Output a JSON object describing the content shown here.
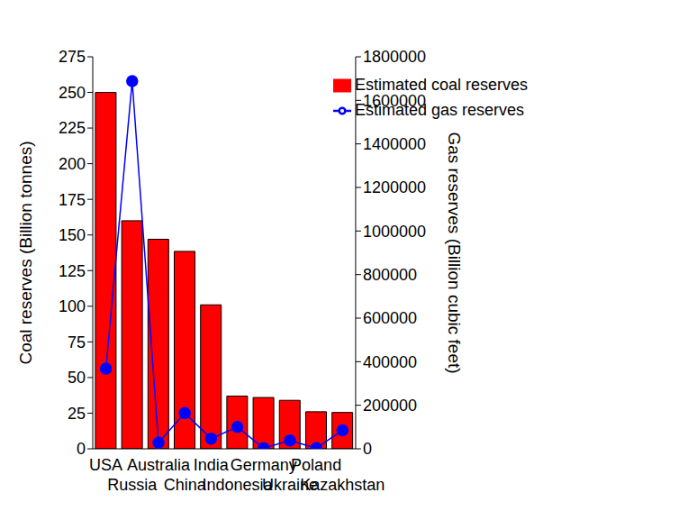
{
  "chart_data": {
    "type": "bar",
    "categories": [
      "USA",
      "Russia",
      "Australia",
      "China",
      "India",
      "Indonesia",
      "Germany",
      "Ukraine",
      "Poland",
      "Kazakhstan"
    ],
    "series": [
      {
        "name": "Estimated coal reserves",
        "type": "bar",
        "color": "#ff0000",
        "values": [
          250,
          160,
          147,
          138.5,
          101,
          37,
          36,
          34,
          26,
          25.5
        ]
      },
      {
        "name": "Estimated gas reserves",
        "type": "line",
        "color": "#0000ff",
        "marker": "circle",
        "axis": "y2",
        "values": [
          368000,
          1688000,
          28000,
          164000,
          47000,
          100000,
          3000,
          38000,
          3000,
          85000
        ]
      }
    ],
    "y_label": "Coal reserves (Billion tonnes)",
    "y2_label": "Gas reserves (Billion cubic feet)",
    "ylim": [
      0,
      275
    ],
    "yticks": [
      0,
      25,
      50,
      75,
      100,
      125,
      150,
      175,
      200,
      225,
      250,
      275
    ],
    "y2lim": [
      0,
      1800000
    ],
    "y2ticks": [
      0,
      200000,
      400000,
      600000,
      800000,
      1000000,
      1200000,
      1400000,
      1600000,
      1800000
    ],
    "legend": "upper right"
  }
}
